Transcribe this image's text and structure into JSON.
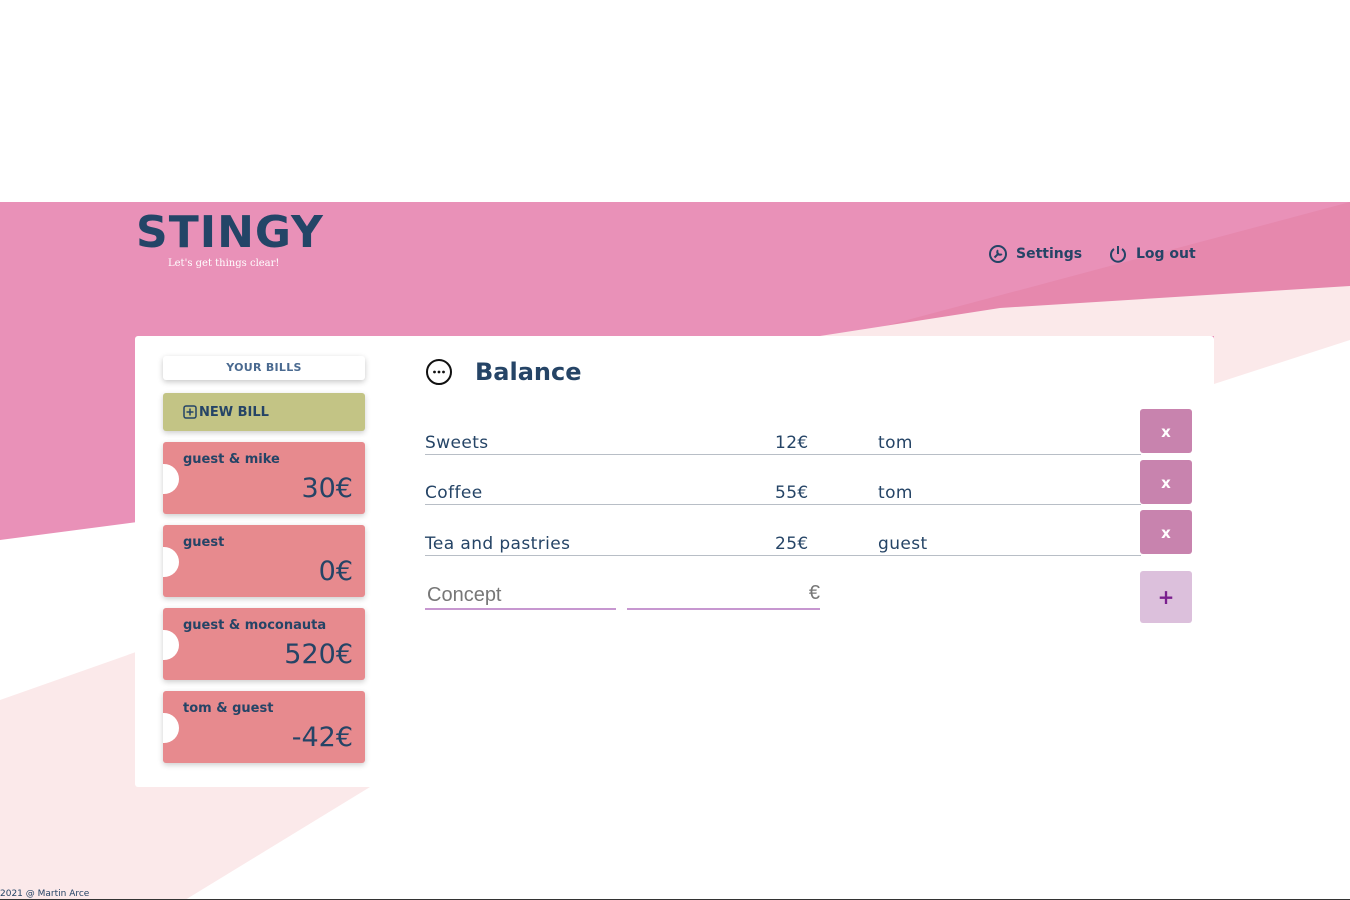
{
  "header": {
    "logo": "STINGY",
    "tagline": "Let's get things clear!",
    "nav": [
      {
        "label": "Settings",
        "icon": "wrench-circle-icon"
      },
      {
        "label": "Log out",
        "icon": "power-icon"
      }
    ]
  },
  "sidebar": {
    "title": "YOUR BILLS",
    "new_bill_label": "NEW BILL",
    "bills": [
      {
        "names": "guest & mike",
        "amount": "30€"
      },
      {
        "names": "guest",
        "amount": "0€"
      },
      {
        "names": "guest & moconauta",
        "amount": "520€"
      },
      {
        "names": "tom & guest",
        "amount": "-42€"
      }
    ]
  },
  "main": {
    "title": "Balance",
    "title_icon": "more-circle-icon",
    "rows": [
      {
        "concept": "Sweets",
        "amount": "12€",
        "who": "tom",
        "delete_label": "x"
      },
      {
        "concept": "Coffee",
        "amount": "55€",
        "who": "tom",
        "delete_label": "x"
      },
      {
        "concept": "Tea and pastries",
        "amount": "25€",
        "who": "guest",
        "delete_label": "x"
      }
    ],
    "new_row": {
      "concept_placeholder": "Concept",
      "amount_value": "",
      "currency": "€",
      "add_label": "+"
    }
  },
  "footer": {
    "text": "2021 @ Martin Arce"
  },
  "colors": {
    "header_pink": "#e991b8",
    "light_pink": "#fbe9ea",
    "navy": "#234567",
    "bill_red": "#e78a8e",
    "new_bill_olive": "#c3c485",
    "delete_purple": "#c883ae",
    "add_lilac": "#dcc0dc"
  }
}
